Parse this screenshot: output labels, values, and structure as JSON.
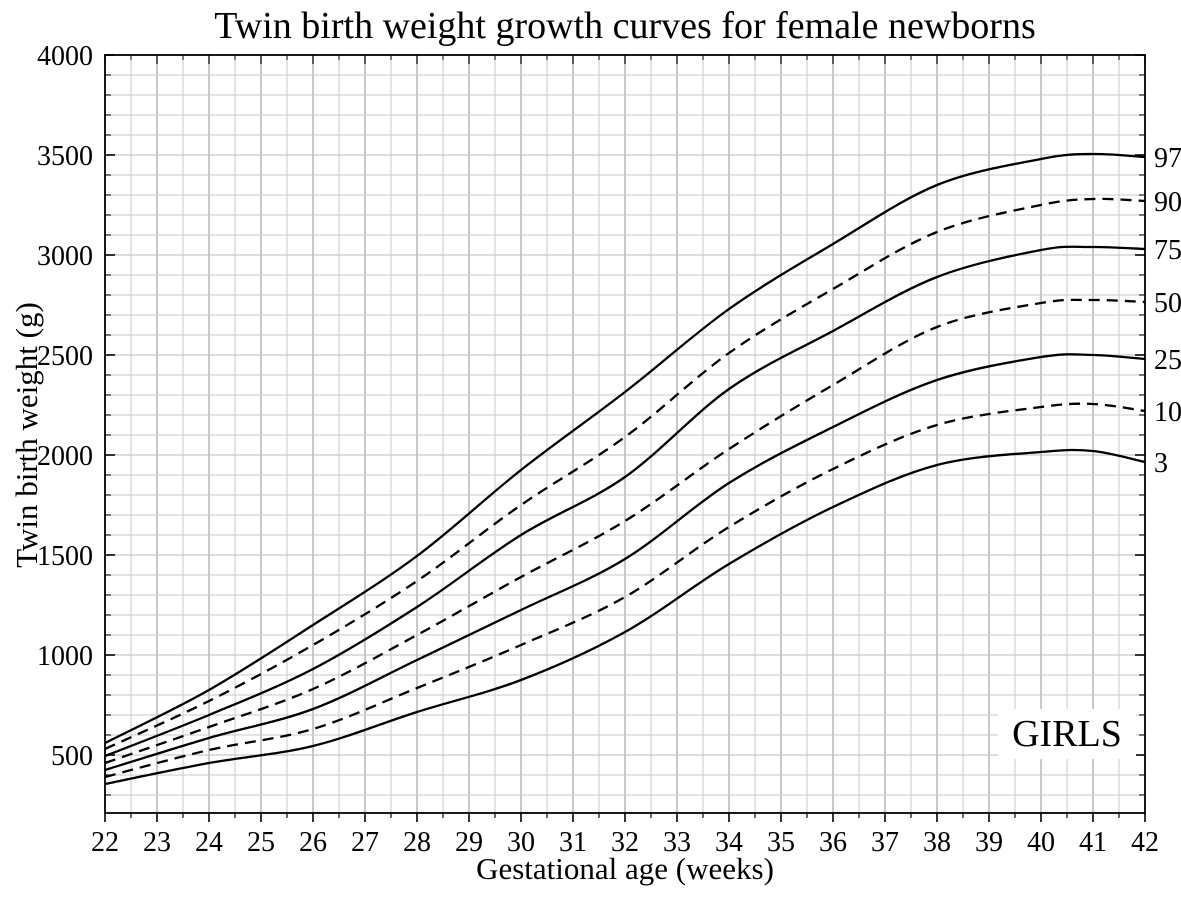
{
  "title": "Twin birth weight growth curves for female newborns",
  "corner_label": "GIRLS",
  "colors": {
    "curve": "#000000",
    "grid_minor": "#c9c9c9",
    "grid_major_vertical": "#929292",
    "grid_major_horizontal": "#bdbdbd",
    "frame": "#000000",
    "text": "#000000",
    "background": "#ffffff"
  },
  "chart_data": {
    "type": "line",
    "title": "Twin birth weight growth curves for female newborns",
    "xlabel": "Gestational age (weeks)",
    "ylabel": "Twin birth weight (g)",
    "xlim": [
      22,
      42
    ],
    "ylim": [
      210,
      4000
    ],
    "grid": true,
    "legend_position": "right-edge-labels",
    "x_tick_labels": [
      "22",
      "23",
      "24",
      "25",
      "26",
      "27",
      "28",
      "29",
      "30",
      "31",
      "32",
      "33",
      "34",
      "35",
      "36",
      "37",
      "38",
      "39",
      "40",
      "41",
      "42"
    ],
    "x_minor_step": 0.5,
    "y_tick_labels": [
      "500",
      "1000",
      "1500",
      "2000",
      "2500",
      "3000",
      "3500",
      "4000"
    ],
    "y_major_step": 500,
    "y_minor_step": 100,
    "x": [
      22,
      24,
      26,
      28,
      30,
      32,
      34,
      36,
      38,
      40,
      41,
      42
    ],
    "series": [
      {
        "name": "97",
        "percentile": 97,
        "line_style": "solid",
        "values": [
          560,
          825,
          1150,
          1495,
          1925,
          2315,
          2730,
          3055,
          3350,
          3480,
          3505,
          3490
        ]
      },
      {
        "name": "90",
        "percentile": 90,
        "line_style": "dashed",
        "values": [
          530,
          770,
          1050,
          1370,
          1750,
          2090,
          2510,
          2830,
          3115,
          3250,
          3280,
          3270
        ]
      },
      {
        "name": "75",
        "percentile": 75,
        "line_style": "solid",
        "values": [
          495,
          700,
          930,
          1240,
          1600,
          1890,
          2330,
          2620,
          2890,
          3025,
          3040,
          3030
        ]
      },
      {
        "name": "50",
        "percentile": 50,
        "line_style": "dashed",
        "values": [
          460,
          640,
          830,
          1100,
          1390,
          1670,
          2030,
          2350,
          2640,
          2760,
          2775,
          2765
        ]
      },
      {
        "name": "25",
        "percentile": 25,
        "line_style": "solid",
        "values": [
          425,
          585,
          730,
          975,
          1225,
          1480,
          1860,
          2140,
          2375,
          2490,
          2500,
          2480
        ]
      },
      {
        "name": "10",
        "percentile": 10,
        "line_style": "dashed",
        "values": [
          390,
          525,
          630,
          835,
          1050,
          1290,
          1640,
          1930,
          2150,
          2240,
          2255,
          2220
        ]
      },
      {
        "name": "3",
        "percentile": 3,
        "line_style": "solid",
        "values": [
          355,
          460,
          545,
          715,
          875,
          1115,
          1455,
          1740,
          1950,
          2015,
          2020,
          1965
        ]
      }
    ]
  }
}
